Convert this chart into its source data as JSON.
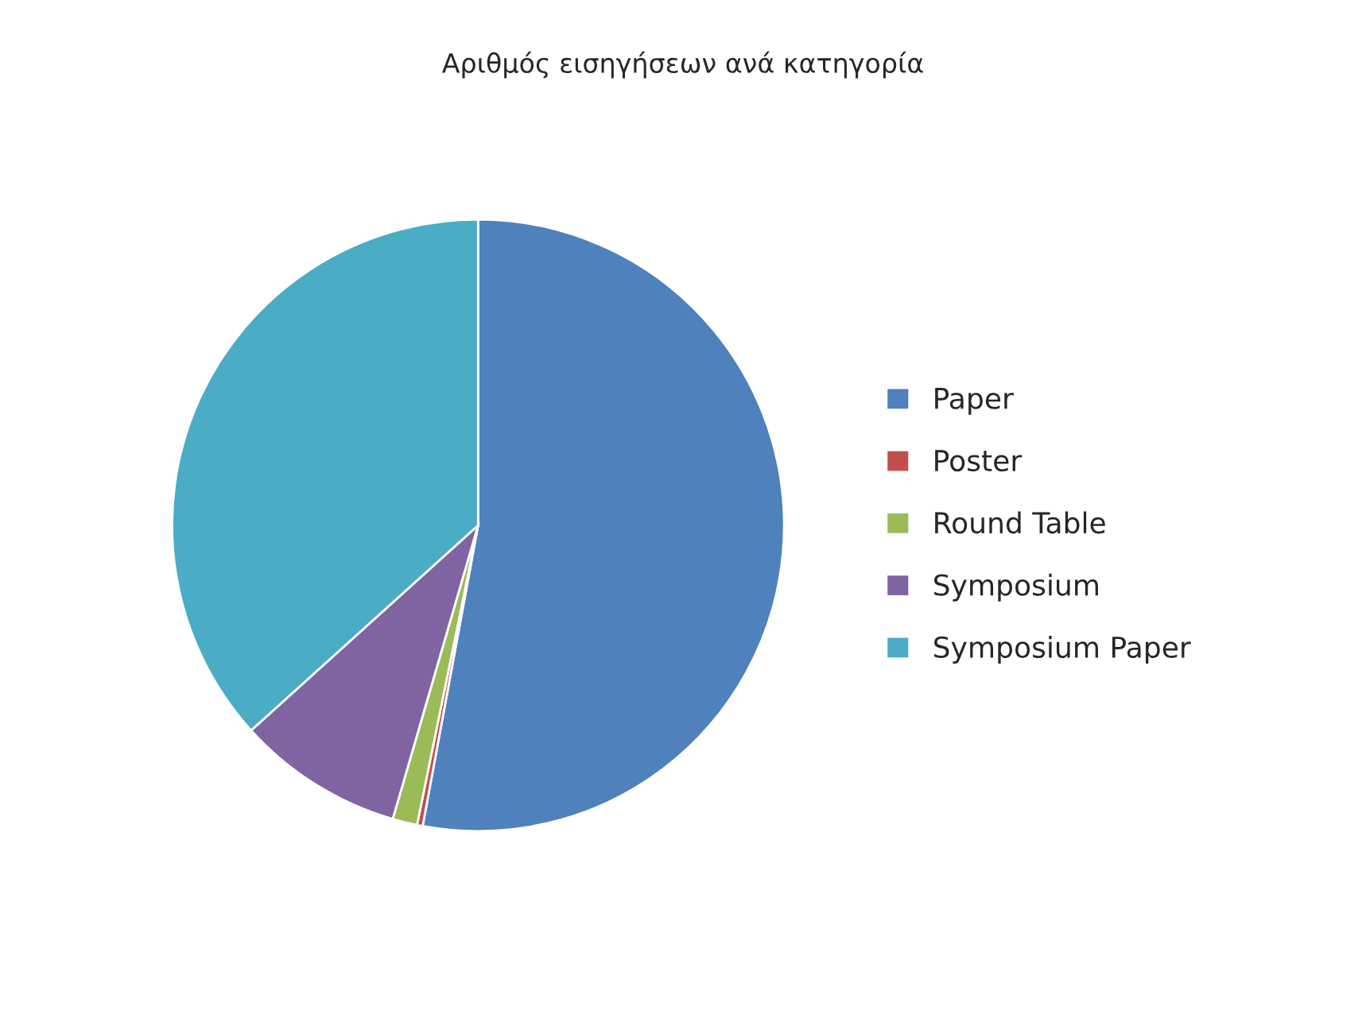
{
  "chart_data": {
    "type": "pie",
    "title": "Αριθμός εισηγήσεων ανά κατηγορία",
    "categories": [
      "Paper",
      "Poster",
      "Round Table",
      "Symposium",
      "Symposium Paper"
    ],
    "values": [
      52.9,
      0.3,
      1.3,
      8.8,
      36.7
    ],
    "colors": [
      "#4f81bd",
      "#c0504d",
      "#9bbb59",
      "#8064a2",
      "#4bacc6"
    ],
    "legend": "right"
  }
}
